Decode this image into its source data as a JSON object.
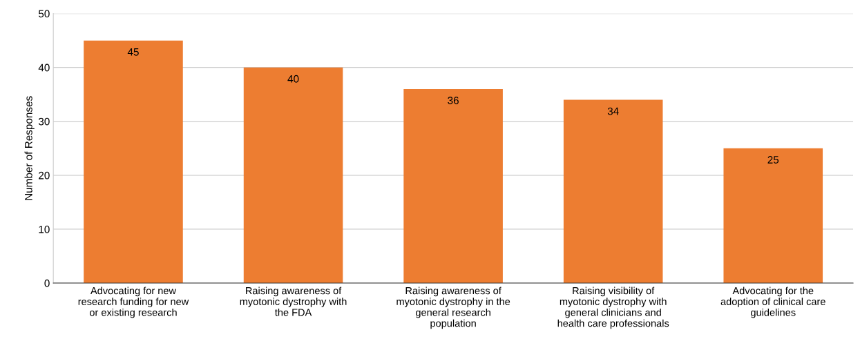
{
  "chart_data": {
    "type": "bar",
    "ylabel": "Number of Responses",
    "categories": [
      "Advocating for new research funding for new or existing research",
      "Raising awareness of myotonic dystrophy with the FDA",
      "Raising awareness of myotonic dystrophy in the general research population",
      "Raising visibility of myotonic dystrophy with general clinicians and health care professionals",
      "Advocating for the adoption of clinical care guidelines"
    ],
    "values": [
      45,
      40,
      36,
      34,
      25
    ],
    "color": "#ed7d31",
    "ylim": [
      0,
      50
    ],
    "yticks": [
      0,
      10,
      20,
      30,
      40,
      50
    ],
    "grid": "y",
    "data_labels": true
  }
}
